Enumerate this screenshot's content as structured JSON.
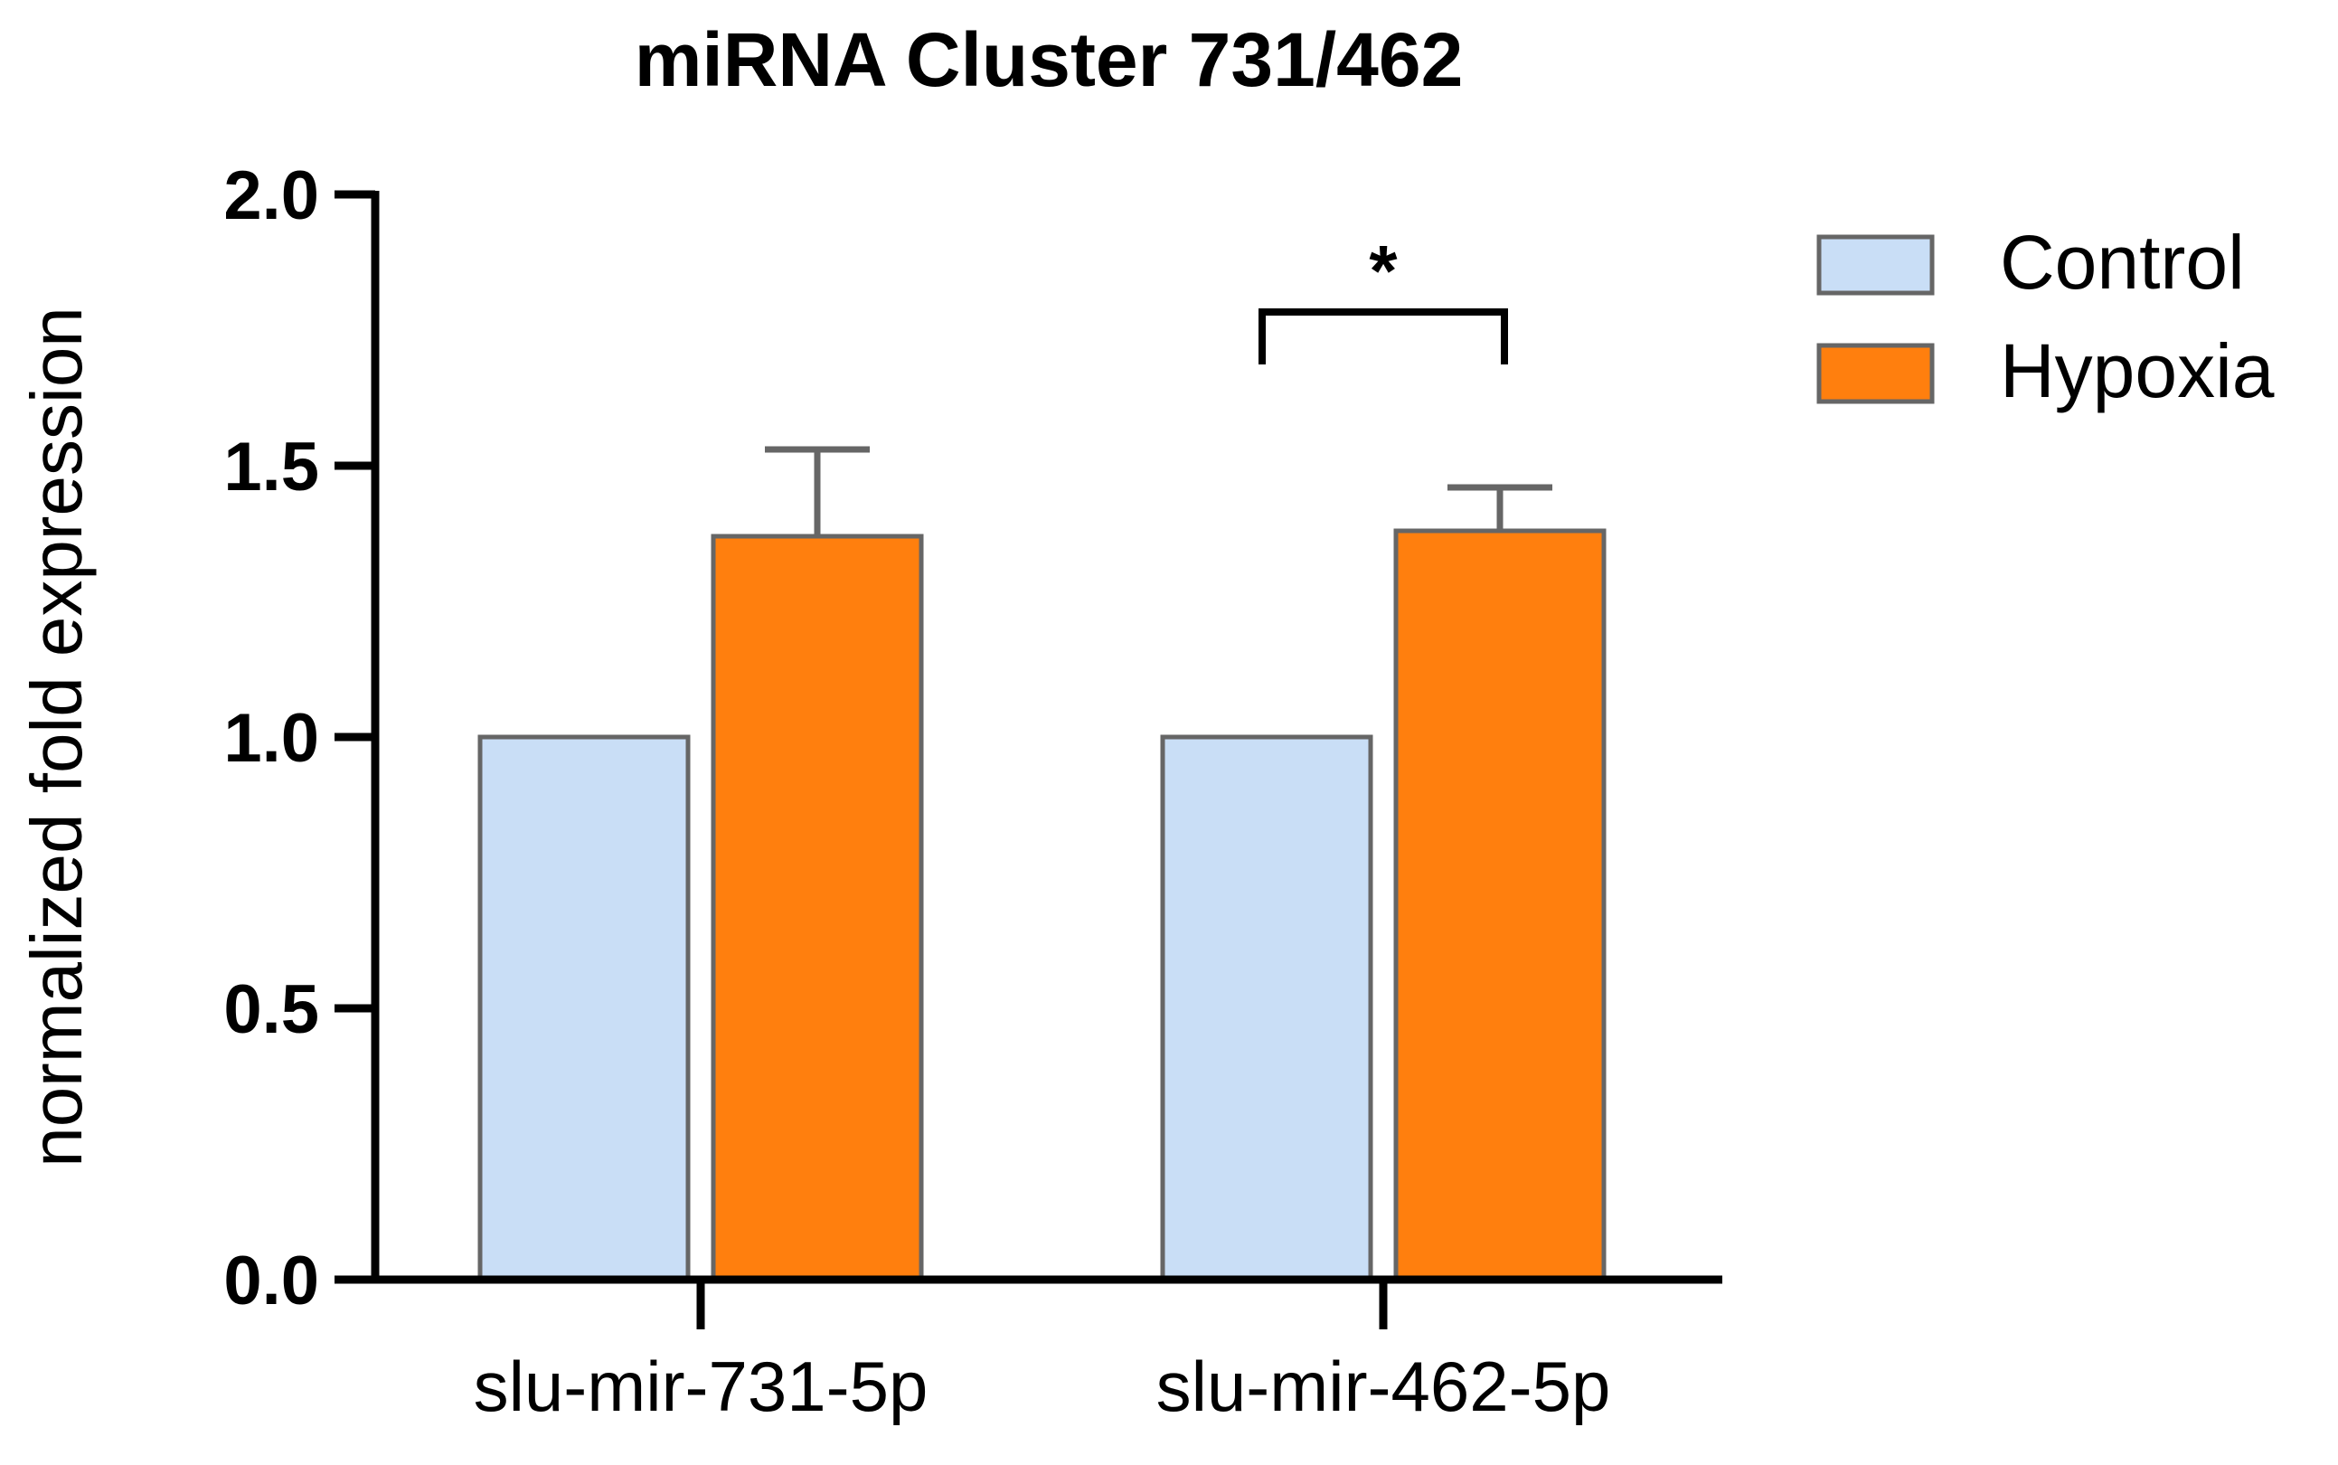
{
  "chart_data": {
    "type": "bar",
    "title": "miRNA Cluster 731/462",
    "xlabel": "",
    "ylabel": "normalized fold expression",
    "ylim": [
      0,
      2.0
    ],
    "yticks": [
      "0.0",
      "0.5",
      "1.0",
      "1.5",
      "2.0"
    ],
    "ytick_values": [
      0,
      0.5,
      1.0,
      1.5,
      2.0
    ],
    "categories": [
      "slu-mir-731-5p",
      "slu-mir-462-5p"
    ],
    "series": [
      {
        "name": "Control",
        "color": "#c9def6",
        "values": [
          1.0,
          1.0
        ],
        "errors": [
          0,
          0
        ]
      },
      {
        "name": "Hypoxia",
        "color": "#ff7f0e",
        "values": [
          1.37,
          1.38
        ],
        "errors": [
          0.16,
          0.08
        ]
      }
    ],
    "annotations": [
      {
        "text": "*",
        "category": "slu-mir-462-5p",
        "type": "significance-bracket",
        "level": 1.78
      }
    ],
    "legend_position": "top-right",
    "grid": false
  }
}
